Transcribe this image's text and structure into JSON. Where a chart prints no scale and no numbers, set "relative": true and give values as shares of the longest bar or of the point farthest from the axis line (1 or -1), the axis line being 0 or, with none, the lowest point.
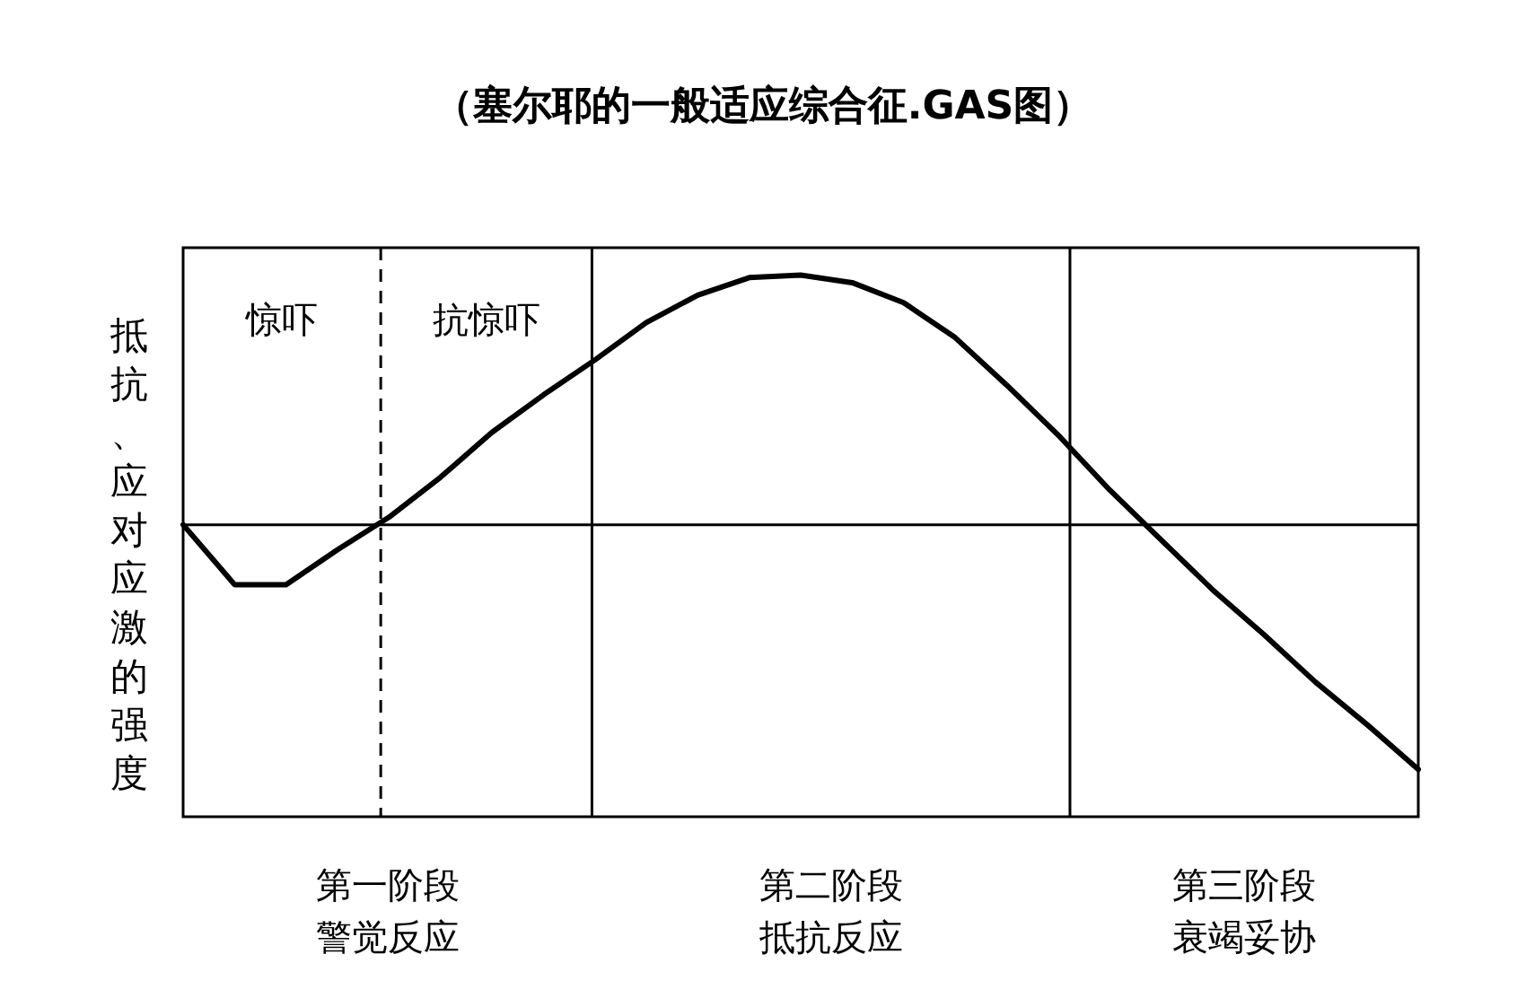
{
  "chart_data": {
    "type": "line",
    "relative": true,
    "title": "（塞尔耶的一般适应综合征.GAS图）",
    "ylabel": "抵抗、应对应激的强度",
    "categories": [
      null,
      null,
      null,
      null,
      null,
      null,
      null,
      null,
      null,
      null,
      null,
      null,
      null,
      null,
      null,
      null,
      null,
      null,
      null,
      null,
      null,
      null,
      null,
      null,
      null
    ],
    "values": [
      0,
      -0.24,
      -0.24,
      -0.1,
      0.03,
      0.19,
      0.37,
      0.52,
      0.66,
      0.81,
      0.92,
      0.99,
      1,
      0.97,
      0.89,
      0.75,
      0.56,
      0.36,
      0.14,
      -0.06,
      -0.26,
      -0.44,
      -0.63,
      -0.8,
      -0.98
    ],
    "color": "#000000",
    "marker": "none",
    "line_style": "solid",
    "ref_lines": [
      {
        "axis": "y",
        "value": 0
      }
    ],
    "annotations": [
      "惊吓",
      "抗惊吓",
      "第一阶段警觉反应",
      "第二阶段抵抗反应",
      "第三阶段衰竭妥协"
    ]
  }
}
